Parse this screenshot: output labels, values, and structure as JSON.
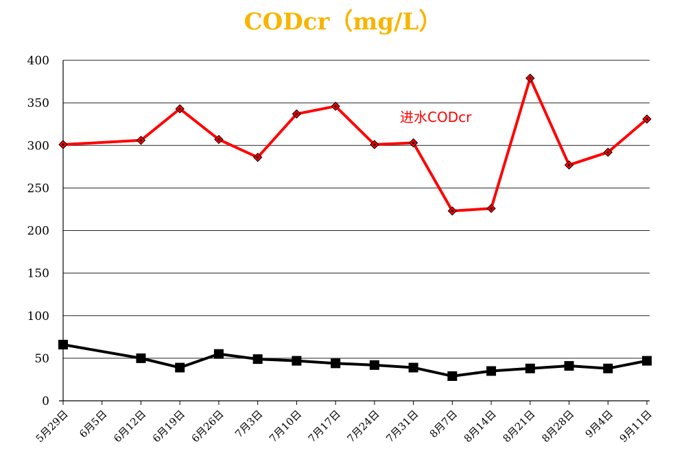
{
  "chart_data": {
    "type": "line",
    "title": "CODcr（mg/L）",
    "xlabel": "",
    "ylabel": "",
    "ylim": [
      0,
      400
    ],
    "yticks": [
      0,
      50,
      100,
      150,
      200,
      250,
      300,
      350,
      400
    ],
    "grid": "horizontal",
    "categories": [
      "5月29日",
      "6月5日",
      "6月12日",
      "6月19日",
      "6月26日",
      "7月3日",
      "7月10日",
      "7月17日",
      "7月24日",
      "7月31日",
      "8月7日",
      "8月14日",
      "8月21日",
      "8月28日",
      "9月4日",
      "9月11日"
    ],
    "series": [
      {
        "name": "进水CODcr",
        "color": "#ff0000",
        "marker": "diamond",
        "values": [
          301,
          null,
          306,
          343,
          307,
          286,
          337,
          346,
          301,
          303,
          223,
          226,
          379,
          277,
          292,
          331
        ]
      },
      {
        "name": "",
        "color": "#000000",
        "marker": "square",
        "values": [
          66,
          null,
          50,
          39,
          55,
          49,
          47,
          44,
          42,
          39,
          29,
          35,
          38,
          41,
          38,
          47
        ]
      }
    ],
    "annotations": [
      {
        "text": "进水CODcr",
        "series_index": 0,
        "color": "#ff0000"
      }
    ]
  }
}
